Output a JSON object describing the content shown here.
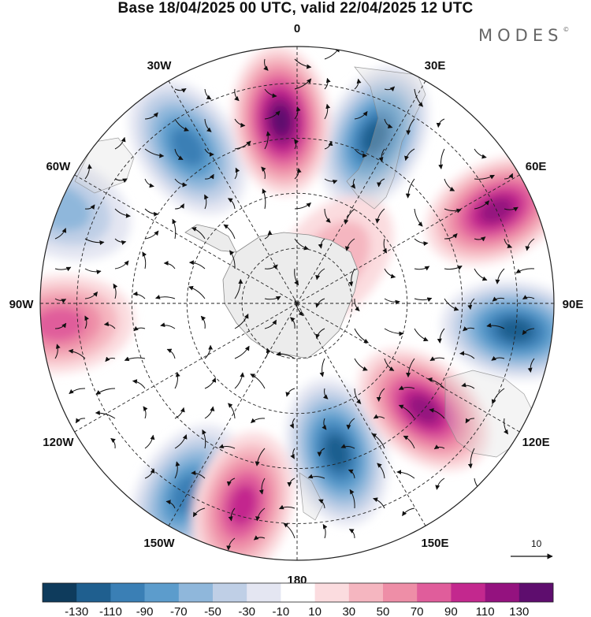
{
  "title": "Base 18/04/2025 00 UTC, valid 22/04/2025 12 UTC",
  "brand": "MODES",
  "brand_mark": "©",
  "longitude_labels": [
    {
      "text": "0",
      "lon": 0
    },
    {
      "text": "30E",
      "lon": 30
    },
    {
      "text": "60E",
      "lon": 60
    },
    {
      "text": "90E",
      "lon": 90
    },
    {
      "text": "120E",
      "lon": 120
    },
    {
      "text": "150E",
      "lon": 150
    },
    {
      "text": "180",
      "lon": 180
    },
    {
      "text": "150W",
      "lon": -150
    },
    {
      "text": "120W",
      "lon": -120
    },
    {
      "text": "90W",
      "lon": -90
    },
    {
      "text": "60W",
      "lon": -60
    },
    {
      "text": "30W",
      "lon": -30
    }
  ],
  "reference_vector_label": "10",
  "colorbar": {
    "colors": [
      "#0e3b5c",
      "#1f5f8f",
      "#3a7fb5",
      "#5c9ccc",
      "#8fb7db",
      "#bfcfe6",
      "#e4e6f2",
      "#ffffff",
      "#fbdcdf",
      "#f5b6c0",
      "#ee8ea7",
      "#e05d9b",
      "#c3288e",
      "#94127f",
      "#5e0d6e"
    ],
    "ticks": [
      "-130",
      "-110",
      "-90",
      "-70",
      "-50",
      "-30",
      "-10",
      "10",
      "30",
      "50",
      "70",
      "90",
      "110",
      "130"
    ]
  },
  "anomaly_centers": [
    {
      "sign": "negative",
      "strength": 110,
      "lon": 25,
      "lat": 40
    },
    {
      "sign": "negative",
      "strength": 100,
      "lon": -35,
      "lat": 38
    },
    {
      "sign": "negative",
      "strength": 60,
      "lon": -68,
      "lat": 20
    },
    {
      "sign": "negative",
      "strength": 120,
      "lon": 97,
      "lat": 30
    },
    {
      "sign": "negative",
      "strength": 110,
      "lon": 165,
      "lat": 48
    },
    {
      "sign": "negative",
      "strength": 100,
      "lon": -150,
      "lat": 30
    },
    {
      "sign": "positive",
      "strength": 130,
      "lon": -5,
      "lat": 40
    },
    {
      "sign": "positive",
      "strength": 120,
      "lon": 65,
      "lat": 30
    },
    {
      "sign": "positive",
      "strength": 120,
      "lon": 130,
      "lat": 45
    },
    {
      "sign": "positive",
      "strength": 100,
      "lon": -165,
      "lat": 33
    },
    {
      "sign": "positive",
      "strength": 80,
      "lon": -95,
      "lat": 25
    },
    {
      "sign": "positive",
      "strength": 40,
      "lon": 40,
      "lat": 75
    }
  ]
}
